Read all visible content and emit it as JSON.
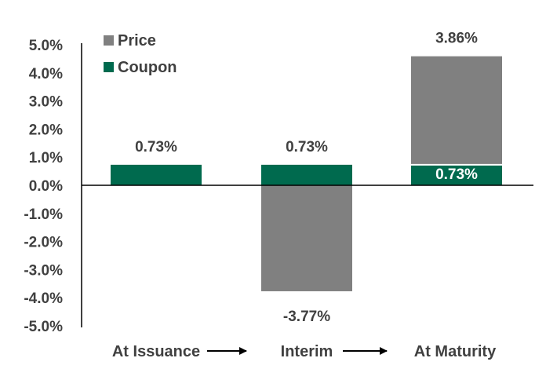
{
  "chart_data": {
    "type": "bar",
    "stacked": true,
    "categories": [
      "At Issuance",
      "Interim",
      "At Maturity"
    ],
    "series": [
      {
        "name": "Coupon",
        "values": [
          0.73,
          0.73,
          0.73
        ],
        "labels": [
          "0.73%",
          "0.73%",
          "0.73%"
        ],
        "color": "#006a4e"
      },
      {
        "name": "Price",
        "values": [
          0,
          -3.77,
          3.86
        ],
        "labels": [
          "",
          "-3.77%",
          "3.86%"
        ],
        "color": "#808080"
      }
    ],
    "yticks": [
      "5.0%",
      "4.0%",
      "3.0%",
      "2.0%",
      "1.0%",
      "0.0%",
      "-1.0%",
      "-2.0%",
      "-3.0%",
      "-4.0%",
      "-5.0%"
    ],
    "ylim": [
      -5,
      5
    ],
    "grid": false,
    "legend": {
      "placement": "top-left",
      "order": [
        "Price",
        "Coupon"
      ]
    },
    "arrows_between_categories": true
  }
}
